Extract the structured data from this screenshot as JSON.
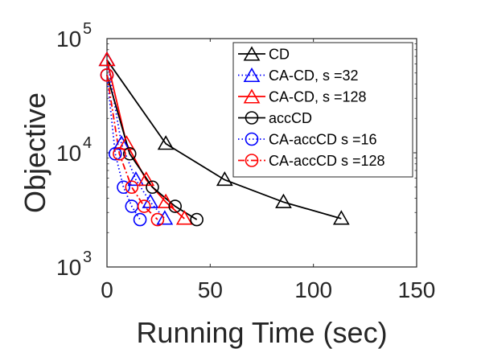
{
  "chart_data": {
    "type": "line",
    "title": "",
    "xlabel": "Running Time (sec)",
    "ylabel": "Objective",
    "x_ticks": [
      "0",
      "50",
      "100",
      "150"
    ],
    "x_tick_values": [
      0,
      50,
      100,
      150
    ],
    "y_ticks": [
      {
        "value": 1000,
        "base": "10",
        "exp": "3"
      },
      {
        "value": 10000,
        "base": "10",
        "exp": "4"
      },
      {
        "value": 100000,
        "base": "10",
        "exp": "5"
      }
    ],
    "xlim": [
      0,
      150
    ],
    "ylim": [
      1000,
      100000
    ],
    "yscale": "log",
    "grid": false,
    "legend_position": "top-right",
    "series": [
      {
        "name": "CD",
        "color": "#000000",
        "marker": "triangle",
        "linestyle": "solid",
        "x": [
          0,
          28.5,
          57,
          85.5,
          113.5
        ],
        "y": [
          65000,
          12000,
          5800,
          3700,
          2650
        ]
      },
      {
        "name": "CA-CD, s =32",
        "color": "#0000ff",
        "marker": "triangle",
        "linestyle": "dotted",
        "x": [
          0,
          7,
          14,
          21,
          28
        ],
        "y": [
          65000,
          12000,
          5800,
          3700,
          2650
        ]
      },
      {
        "name": "CA-CD, s =128",
        "color": "#ff0000",
        "marker": "triangle",
        "linestyle": "solid",
        "x": [
          0,
          9.5,
          19,
          28.5,
          37.5
        ],
        "y": [
          65000,
          12000,
          5800,
          3700,
          2650
        ]
      },
      {
        "name": "accCD",
        "color": "#000000",
        "marker": "circle",
        "linestyle": "solid",
        "x": [
          0,
          11,
          22,
          33,
          43.5
        ],
        "y": [
          48000,
          9800,
          5000,
          3400,
          2600
        ]
      },
      {
        "name": "CA-accCD s =16",
        "color": "#0000ff",
        "marker": "circle",
        "linestyle": "dotted",
        "x": [
          0,
          4,
          8,
          12,
          16
        ],
        "y": [
          48000,
          9800,
          5000,
          3400,
          2600
        ]
      },
      {
        "name": "CA-accCD s =128",
        "color": "#ff0000",
        "marker": "circle",
        "linestyle": "dashdot",
        "x": [
          0,
          6,
          12,
          18,
          24.5
        ],
        "y": [
          48000,
          9800,
          5000,
          3400,
          2600
        ]
      }
    ]
  }
}
